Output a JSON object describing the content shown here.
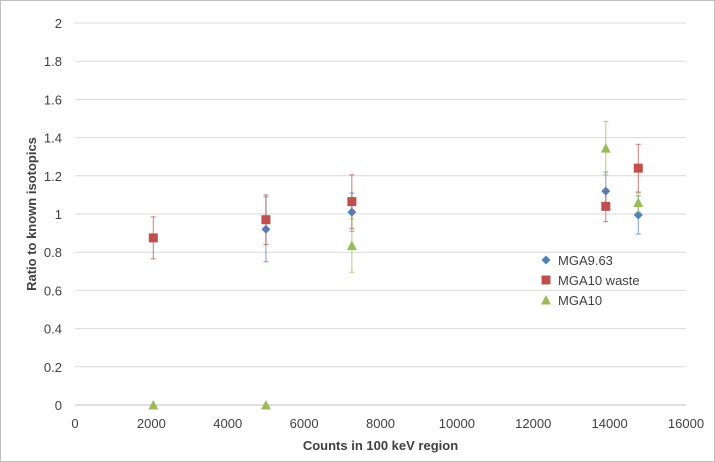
{
  "chart_data": {
    "type": "scatter",
    "title": "",
    "xlabel": "Counts in 100 keV region",
    "ylabel": "Ratio to known isotopics",
    "xlim": [
      0,
      16000
    ],
    "ylim": [
      0,
      2
    ],
    "x_ticks": [
      0,
      2000,
      4000,
      6000,
      8000,
      10000,
      12000,
      14000,
      16000
    ],
    "y_ticks": [
      0,
      0.2,
      0.4,
      0.6,
      0.8,
      1,
      1.2,
      1.4,
      1.6,
      1.8,
      2
    ],
    "grid": "horizontal",
    "legend_position": "right",
    "series": [
      {
        "name": "MGA9.63",
        "color": "#4f81bd",
        "marker": "diamond",
        "points": [
          {
            "x": 5000,
            "y": 0.92,
            "err": 0.17
          },
          {
            "x": 7250,
            "y": 1.01,
            "err": 0.1
          },
          {
            "x": 13900,
            "y": 1.12,
            "err": 0.1
          },
          {
            "x": 14750,
            "y": 0.995,
            "err": 0.1
          }
        ]
      },
      {
        "name": "MGA10 waste",
        "color": "#c0504d",
        "marker": "square",
        "points": [
          {
            "x": 2050,
            "y": 0.875,
            "err": 0.11
          },
          {
            "x": 5000,
            "y": 0.97,
            "err": 0.13
          },
          {
            "x": 7250,
            "y": 1.065,
            "err": 0.14
          },
          {
            "x": 13900,
            "y": 1.04,
            "err": 0.08
          },
          {
            "x": 14750,
            "y": 1.24,
            "err": 0.125
          }
        ]
      },
      {
        "name": "MGA10",
        "color": "#9bbb59",
        "marker": "triangle",
        "points": [
          {
            "x": 2050,
            "y": 0.0,
            "err": 0
          },
          {
            "x": 5000,
            "y": 0.0,
            "err": 0
          },
          {
            "x": 7250,
            "y": 0.835,
            "err": 0.14
          },
          {
            "x": 13900,
            "y": 1.345,
            "err": 0.14
          },
          {
            "x": 14750,
            "y": 1.06,
            "err": 0.05
          }
        ]
      }
    ]
  }
}
